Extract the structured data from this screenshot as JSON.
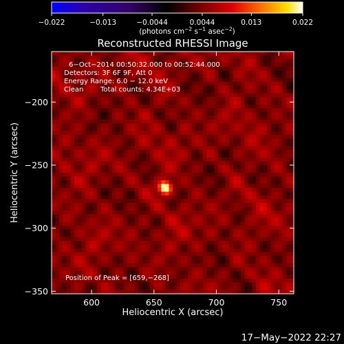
{
  "chart_data": {
    "type": "heatmap",
    "title": "Reconstructed RHESSI Image",
    "xlabel": "Heliocentric X (arcsec)",
    "ylabel": "Heliocentric Y (arcsec)",
    "xlim": [
      568,
      762
    ],
    "ylim": [
      -352,
      -160
    ],
    "x_ticks": [
      600,
      650,
      700,
      750
    ],
    "x_tick_labels": [
      "600",
      "650",
      "700",
      "750"
    ],
    "y_ticks": [
      -200,
      -250,
      -300,
      -350
    ],
    "y_tick_labels": [
      "−200",
      "−250",
      "−300",
      "−350"
    ],
    "colorbar": {
      "range": [
        -0.022,
        0.022
      ],
      "ticks": [
        -0.022,
        -0.013,
        -0.0044,
        0.0044,
        0.013,
        0.022
      ],
      "tick_labels": [
        "−0.022",
        "−0.013",
        "−0.0044",
        "0.0044",
        "0.013",
        "0.022"
      ],
      "unit_prefix": "(photons cm",
      "unit_sup1": "−2",
      "unit_mid": " s",
      "unit_sup2": "−1",
      "unit_mid2": " asec",
      "unit_sup3": "−2",
      "unit_suffix": ")"
    },
    "annotations": {
      "time_range": "6−Oct−2014 00:50:32.000 to 00:52:44.000",
      "detectors": "Detectors: 3F 6F 9F, Att 0",
      "energy_range": "Energy Range: 6.0 − 12.0 keV",
      "algorithm": "Clean",
      "total_counts": "Total counts: 4.34E+03",
      "peak": "Position of Peak = [659,−268]"
    },
    "peak": {
      "x": 659,
      "y": -268,
      "value": 0.022
    },
    "colormap": [
      "#0000ff",
      "#2a00b0",
      "#3a0070",
      "#000000",
      "#7a0000",
      "#e00000",
      "#ff8000",
      "#ffe000",
      "#ffffff"
    ]
  },
  "footer": {
    "timestamp": "17−May−2022 22:27"
  }
}
